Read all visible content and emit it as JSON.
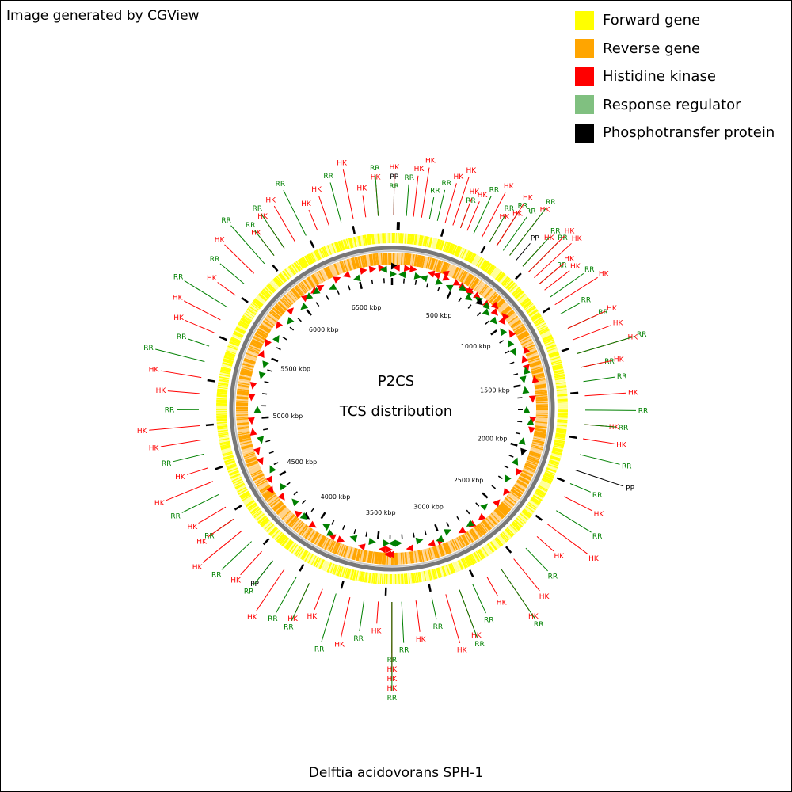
{
  "header": {
    "credit": "Image generated by CGView"
  },
  "legend": [
    {
      "label": "Forward gene",
      "color": "#ffff00"
    },
    {
      "label": "Reverse gene",
      "color": "#ffa500"
    },
    {
      "label": "Histidine kinase",
      "color": "#ff0000"
    },
    {
      "label": "Response regulator",
      "color": "#80c080"
    },
    {
      "label": "Phosphotransfer protein",
      "color": "#000000"
    }
  ],
  "map": {
    "title_line1": "P2CS",
    "title_line2": "TCS distribution",
    "genome": "Delftia acidovorans SPH-1",
    "genome_length_kbp": 6767,
    "tick_labels": [
      {
        "kbp": 500,
        "text": "500 kbp"
      },
      {
        "kbp": 1000,
        "text": "1000 kbp"
      },
      {
        "kbp": 1500,
        "text": "1500 kbp"
      },
      {
        "kbp": 2000,
        "text": "2000 kbp"
      },
      {
        "kbp": 2500,
        "text": "2500 kbp"
      },
      {
        "kbp": 3000,
        "text": "3000 kbp"
      },
      {
        "kbp": 3500,
        "text": "3500 kbp"
      },
      {
        "kbp": 4000,
        "text": "4000 kbp"
      },
      {
        "kbp": 4500,
        "text": "4500 kbp"
      },
      {
        "kbp": 5000,
        "text": "5000 kbp"
      },
      {
        "kbp": 5500,
        "text": "5500 kbp"
      },
      {
        "kbp": 6000,
        "text": "6000 kbp"
      },
      {
        "kbp": 6500,
        "text": "6500 kbp"
      }
    ],
    "features": [
      {
        "kbp": 10,
        "labels": [
          "RR",
          "PP",
          "HK"
        ]
      },
      {
        "kbp": 80,
        "labels": [
          "RR"
        ]
      },
      {
        "kbp": 120,
        "labels": [
          "HK"
        ]
      },
      {
        "kbp": 165,
        "labels": [
          "HK"
        ]
      },
      {
        "kbp": 210,
        "labels": [
          "RR"
        ]
      },
      {
        "kbp": 255,
        "labels": [
          "RR"
        ]
      },
      {
        "kbp": 300,
        "labels": [
          "HK"
        ]
      },
      {
        "kbp": 345,
        "labels": [
          "HK"
        ]
      },
      {
        "kbp": 390,
        "labels": [
          "RR",
          "HK"
        ]
      },
      {
        "kbp": 430,
        "labels": [
          "HK"
        ]
      },
      {
        "kbp": 470,
        "labels": [
          "RR"
        ]
      },
      {
        "kbp": 520,
        "labels": [
          "HK"
        ]
      },
      {
        "kbp": 570,
        "labels": [
          "HK",
          "RR"
        ]
      },
      {
        "kbp": 615,
        "labels": [
          "HK",
          "RR",
          "HK"
        ]
      },
      {
        "kbp": 660,
        "labels": [
          "RR"
        ]
      },
      {
        "kbp": 705,
        "labels": [
          "HK",
          "RR"
        ]
      },
      {
        "kbp": 750,
        "labels": [
          "PP"
        ]
      },
      {
        "kbp": 800,
        "labels": [
          "HK",
          "RR"
        ]
      },
      {
        "kbp": 845,
        "labels": [
          "RR",
          "HK"
        ]
      },
      {
        "kbp": 890,
        "labels": [
          "HK"
        ]
      },
      {
        "kbp": 935,
        "labels": [
          "RR",
          "HK"
        ]
      },
      {
        "kbp": 980,
        "labels": [
          "HK"
        ]
      },
      {
        "kbp": 1030,
        "labels": [
          "RR"
        ]
      },
      {
        "kbp": 1080,
        "labels": [
          "HK"
        ]
      },
      {
        "kbp": 1140,
        "labels": [
          "RR"
        ]
      },
      {
        "kbp": 1230,
        "labels": [
          "RR",
          "HK"
        ]
      },
      {
        "kbp": 1300,
        "labels": [
          "HK"
        ]
      },
      {
        "kbp": 1380,
        "labels": [
          "HK",
          "RR"
        ]
      },
      {
        "kbp": 1460,
        "labels": [
          "RR",
          "HK"
        ]
      },
      {
        "kbp": 1540,
        "labels": [
          "RR"
        ]
      },
      {
        "kbp": 1620,
        "labels": [
          "HK"
        ]
      },
      {
        "kbp": 1700,
        "labels": [
          "RR"
        ]
      },
      {
        "kbp": 1780,
        "labels": [
          "HK",
          "RR"
        ]
      },
      {
        "kbp": 1860,
        "labels": [
          "HK"
        ]
      },
      {
        "kbp": 1950,
        "labels": [
          "RR"
        ]
      },
      {
        "kbp": 2040,
        "labels": [
          "PP"
        ]
      },
      {
        "kbp": 2120,
        "labels": [
          "RR"
        ]
      },
      {
        "kbp": 2200,
        "labels": [
          "HK"
        ]
      },
      {
        "kbp": 2290,
        "labels": [
          "RR"
        ]
      },
      {
        "kbp": 2380,
        "labels": [
          "HK"
        ]
      },
      {
        "kbp": 2470,
        "labels": [
          "HK"
        ]
      },
      {
        "kbp": 2560,
        "labels": [
          "RR"
        ]
      },
      {
        "kbp": 2650,
        "labels": [
          "HK"
        ]
      },
      {
        "kbp": 2740,
        "labels": [
          "HK",
          "RR"
        ]
      },
      {
        "kbp": 2830,
        "labels": [
          "HK"
        ]
      },
      {
        "kbp": 2920,
        "labels": [
          "RR"
        ]
      },
      {
        "kbp": 3000,
        "labels": [
          "HK",
          "RR"
        ]
      },
      {
        "kbp": 3080,
        "labels": [
          "HK"
        ]
      },
      {
        "kbp": 3160,
        "labels": [
          "RR"
        ]
      },
      {
        "kbp": 3250,
        "labels": [
          "HK"
        ]
      },
      {
        "kbp": 3330,
        "labels": [
          "RR"
        ]
      },
      {
        "kbp": 3384,
        "labels": [
          "RR",
          "HK",
          "HK",
          "HK",
          "RR"
        ]
      },
      {
        "kbp": 3460,
        "labels": [
          "HK"
        ]
      },
      {
        "kbp": 3540,
        "labels": [
          "RR"
        ]
      },
      {
        "kbp": 3620,
        "labels": [
          "HK"
        ]
      },
      {
        "kbp": 3700,
        "labels": [
          "RR"
        ]
      },
      {
        "kbp": 3780,
        "labels": [
          "HK"
        ]
      },
      {
        "kbp": 3860,
        "labels": [
          "HK",
          "RR"
        ]
      },
      {
        "kbp": 3940,
        "labels": [
          "RR"
        ]
      },
      {
        "kbp": 4020,
        "labels": [
          "HK"
        ]
      },
      {
        "kbp": 4100,
        "labels": [
          "PP",
          "RR"
        ]
      },
      {
        "kbp": 4180,
        "labels": [
          "HK"
        ]
      },
      {
        "kbp": 4260,
        "labels": [
          "RR"
        ]
      },
      {
        "kbp": 4340,
        "labels": [
          "HK"
        ]
      },
      {
        "kbp": 4420,
        "labels": [
          "RR",
          "HK"
        ]
      },
      {
        "kbp": 4500,
        "labels": [
          "HK"
        ]
      },
      {
        "kbp": 4580,
        "labels": [
          "RR"
        ]
      },
      {
        "kbp": 4660,
        "labels": [
          "HK"
        ]
      },
      {
        "kbp": 4740,
        "labels": [
          "HK"
        ]
      },
      {
        "kbp": 4820,
        "labels": [
          "RR"
        ]
      },
      {
        "kbp": 4900,
        "labels": [
          "HK"
        ]
      },
      {
        "kbp": 4980,
        "labels": [
          "HK"
        ]
      },
      {
        "kbp": 5070,
        "labels": [
          "RR"
        ]
      },
      {
        "kbp": 5160,
        "labels": [
          "HK"
        ]
      },
      {
        "kbp": 5250,
        "labels": [
          "HK"
        ]
      },
      {
        "kbp": 5340,
        "labels": [
          "RR"
        ]
      },
      {
        "kbp": 5430,
        "labels": [
          "RR"
        ]
      },
      {
        "kbp": 5510,
        "labels": [
          "HK"
        ]
      },
      {
        "kbp": 5590,
        "labels": [
          "HK"
        ]
      },
      {
        "kbp": 5670,
        "labels": [
          "RR"
        ]
      },
      {
        "kbp": 5750,
        "labels": [
          "HK"
        ]
      },
      {
        "kbp": 5830,
        "labels": [
          "RR"
        ]
      },
      {
        "kbp": 5910,
        "labels": [
          "HK"
        ]
      },
      {
        "kbp": 5990,
        "labels": [
          "RR"
        ]
      },
      {
        "kbp": 6060,
        "labels": [
          "HK",
          "RR"
        ]
      },
      {
        "kbp": 6130,
        "labels": [
          "HK",
          "RR"
        ]
      },
      {
        "kbp": 6200,
        "labels": [
          "HK"
        ]
      },
      {
        "kbp": 6270,
        "labels": [
          "RR"
        ]
      },
      {
        "kbp": 6340,
        "labels": [
          "HK"
        ]
      },
      {
        "kbp": 6410,
        "labels": [
          "HK"
        ]
      },
      {
        "kbp": 6480,
        "labels": [
          "RR"
        ]
      },
      {
        "kbp": 6550,
        "labels": [
          "HK"
        ]
      },
      {
        "kbp": 6620,
        "labels": [
          "HK"
        ]
      },
      {
        "kbp": 6690,
        "labels": [
          "HK",
          "RR"
        ]
      }
    ]
  }
}
